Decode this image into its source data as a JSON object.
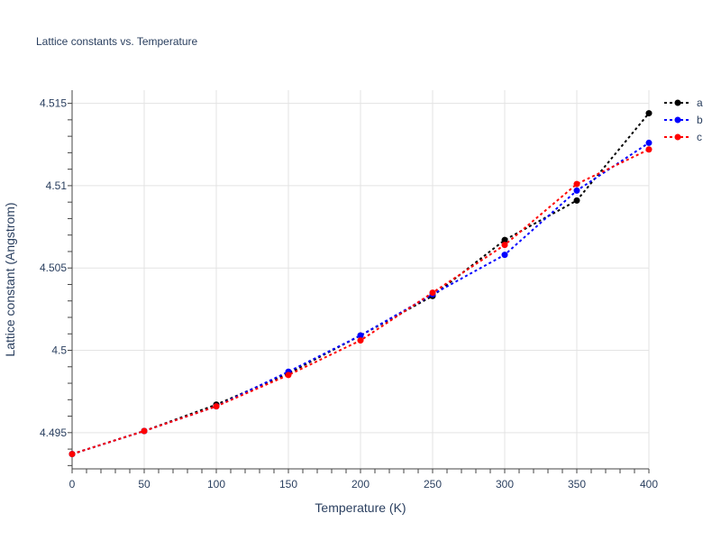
{
  "chart_data": {
    "type": "line",
    "title": "Lattice constants vs. Temperature",
    "xlabel": "Temperature (K)",
    "ylabel": "Lattice constant (Angstrom)",
    "xlim": [
      0,
      400
    ],
    "ylim": [
      4.4928,
      4.5158
    ],
    "x_ticks": [
      0,
      50,
      100,
      150,
      200,
      250,
      300,
      350,
      400
    ],
    "y_ticks": [
      4.495,
      4.5,
      4.505,
      4.51,
      4.515
    ],
    "y_tick_labels": [
      "4.495",
      "4.5",
      "4.505",
      "4.51",
      "4.515"
    ],
    "grid": true,
    "legend_position": "top-right",
    "x": [
      0,
      50,
      100,
      150,
      200,
      250,
      300,
      350,
      400
    ],
    "series": [
      {
        "name": "a",
        "color": "#000000",
        "values": [
          4.4937,
          4.4951,
          4.4967,
          4.4986,
          4.5009,
          4.5033,
          4.5067,
          4.5091,
          4.5144
        ]
      },
      {
        "name": "b",
        "color": "#0000ff",
        "values": [
          4.4937,
          4.4951,
          4.4966,
          4.4987,
          4.5009,
          4.5034,
          4.5058,
          4.5097,
          4.5126
        ]
      },
      {
        "name": "c",
        "color": "#ff0000",
        "values": [
          4.4937,
          4.4951,
          4.4966,
          4.4985,
          4.5006,
          4.5035,
          4.5064,
          4.5101,
          4.5122
        ]
      }
    ]
  }
}
